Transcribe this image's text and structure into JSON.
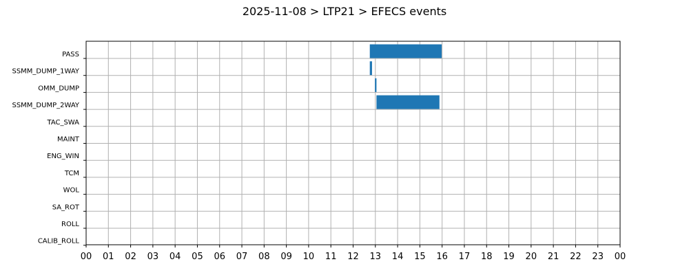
{
  "chart_data": {
    "type": "bar",
    "orientation": "horizontal",
    "title": "2025-11-08 > LTP21 > EFECS events",
    "xlabel": "",
    "ylabel": "",
    "x_unit": "hour",
    "xlim": [
      0,
      24
    ],
    "x_tick_labels": [
      "00",
      "01",
      "02",
      "03",
      "04",
      "05",
      "06",
      "07",
      "08",
      "09",
      "10",
      "11",
      "12",
      "13",
      "14",
      "15",
      "16",
      "17",
      "18",
      "19",
      "20",
      "21",
      "22",
      "23",
      "00"
    ],
    "categories": [
      "PASS",
      "SSMM_DUMP_1WAY",
      "OMM_DUMP",
      "SSMM_DUMP_2WAY",
      "TAC_SWA",
      "MAINT",
      "ENG_WIN",
      "TCM",
      "WOL",
      "SA_ROT",
      "ROLL",
      "CALIB_ROLL"
    ],
    "events": [
      {
        "category": "PASS",
        "start": 12.75,
        "end": 15.98
      },
      {
        "category": "SSMM_DUMP_1WAY",
        "start": 12.75,
        "end": 12.85
      },
      {
        "category": "OMM_DUMP",
        "start": 12.98,
        "end": 13.05
      },
      {
        "category": "SSMM_DUMP_2WAY",
        "start": 13.05,
        "end": 15.88
      }
    ],
    "bar_color": "#1f77b4",
    "grid": true,
    "legend": "none"
  }
}
